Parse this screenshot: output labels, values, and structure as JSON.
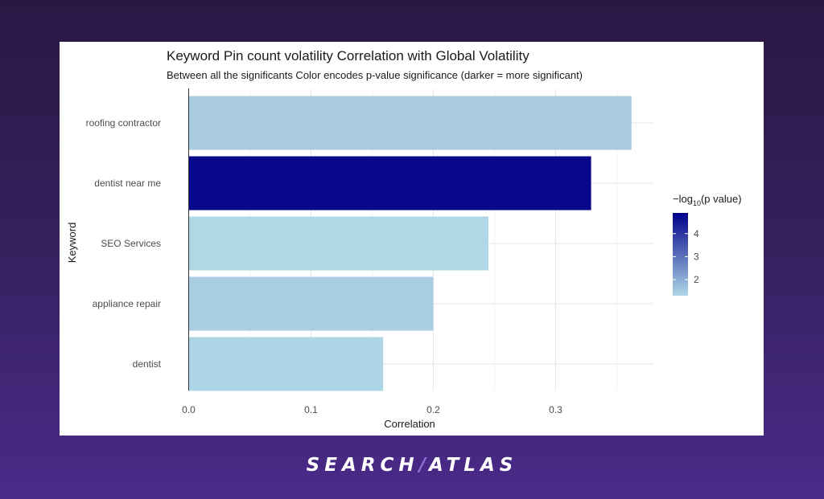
{
  "chart_data": {
    "type": "bar",
    "orientation": "horizontal",
    "title": "Keyword Pin count volatility Correlation with Global Volatility",
    "subtitle": "Between all the significants Color encodes p-value significance (darker = more significant)",
    "xlabel": "Correlation",
    "ylabel": "Keyword",
    "xlim": [
      0,
      0.38
    ],
    "xticks": [
      "0.0",
      "0.1",
      "0.2",
      "0.3"
    ],
    "categories": [
      "roofing contractor",
      "dentist near me",
      "SEO Services",
      "appliance repair",
      "dentist"
    ],
    "values": [
      0.362,
      0.329,
      0.245,
      0.2,
      0.159
    ],
    "neg_log10_p": [
      1.9,
      4.9,
      1.3,
      1.9,
      1.4
    ],
    "colors": [
      "#a8cbe0",
      "#08088c",
      "#aed8e6",
      "#a9cde1",
      "#acd6e5"
    ],
    "legend": {
      "title_prefix": "−log",
      "title_sub": "10",
      "title_suffix": "(p value)",
      "ticks": [
        "2",
        "3",
        "4"
      ],
      "range": [
        1.3,
        4.9
      ],
      "color_low": "#add8e6",
      "color_high": "#00008b",
      "position": "right"
    },
    "grid": true
  },
  "branding": {
    "left": "SEARCH",
    "slash": "/",
    "right": "ATLAS"
  }
}
